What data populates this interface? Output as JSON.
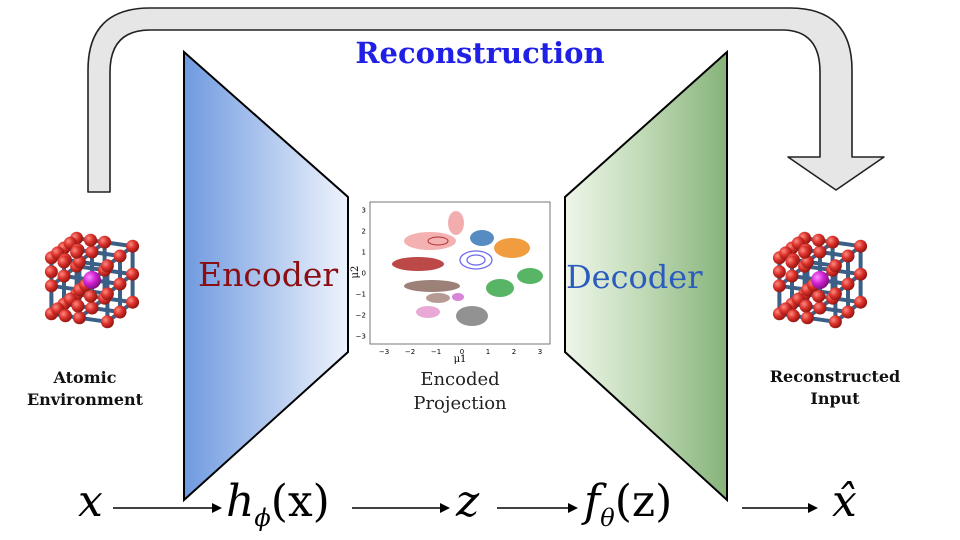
{
  "title": "Reconstruction",
  "encoder_label": "Encoder",
  "decoder_label": "Decoder",
  "input_caption": [
    "Atomic",
    "Environment"
  ],
  "projection_caption": [
    "Encoded",
    "Projection"
  ],
  "output_caption": [
    "Reconstructed",
    "Input"
  ],
  "equation": {
    "x": "x",
    "h": "h",
    "h_sub": "ϕ",
    "h_arg": "(x)",
    "z": "z",
    "f": "f",
    "f_sub": "θ",
    "f_arg": "(z)",
    "x_hat": "x̂"
  },
  "plot": {
    "xlabel": "μ1",
    "ylabel": "μ2",
    "xticks": [
      "−3",
      "−2",
      "−1",
      "0",
      "1",
      "2",
      "3"
    ],
    "yticks": [
      "3",
      "2",
      "1",
      "0",
      "−1",
      "−2",
      "−3"
    ]
  },
  "colors": {
    "title": "#1f1fe6",
    "encoder_text": "#8b0e12",
    "decoder_text": "#2a5bbf",
    "encoder_fill": "#6f9ae0",
    "decoder_fill": "#8fba84",
    "atom": "#d9302a",
    "center_atom": "#cc22cc",
    "bond": "#3b5f86"
  }
}
